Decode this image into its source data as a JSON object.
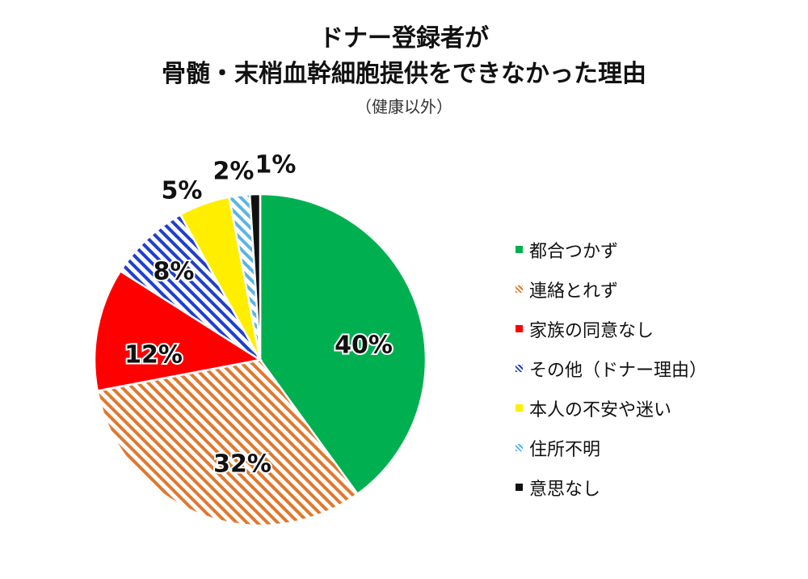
{
  "chart_data": {
    "type": "pie",
    "title": "ドナー登録者が",
    "title_line2": "骨髄・末梢血幹細胞提供をできなかった理由",
    "subtitle": "（健康以外）",
    "start": "12 o'clock, clockwise",
    "legend_position": "right",
    "slices": [
      {
        "name": "都合つかず",
        "value": 40,
        "label": "40%",
        "color": "#00b050",
        "fill": "solid"
      },
      {
        "name": "連絡とれず",
        "value": 32,
        "label": "32%",
        "color": "#e0782e",
        "fill": "hatched"
      },
      {
        "name": "家族の同意なし",
        "value": 12,
        "label": "12%",
        "color": "#ff0000",
        "fill": "solid"
      },
      {
        "name": "その他（ドナー理由）",
        "value": 8,
        "label": "8%",
        "color": "#1f3fcf",
        "fill": "hatched"
      },
      {
        "name": "本人の不安や迷い",
        "value": 5,
        "label": "5%",
        "color": "#ffee00",
        "fill": "solid"
      },
      {
        "name": "住所不明",
        "value": 2,
        "label": "2%",
        "color": "#5ab4e6",
        "fill": "hatched"
      },
      {
        "name": "意思なし",
        "value": 1,
        "label": "1%",
        "color": "#111111",
        "fill": "solid"
      }
    ]
  }
}
